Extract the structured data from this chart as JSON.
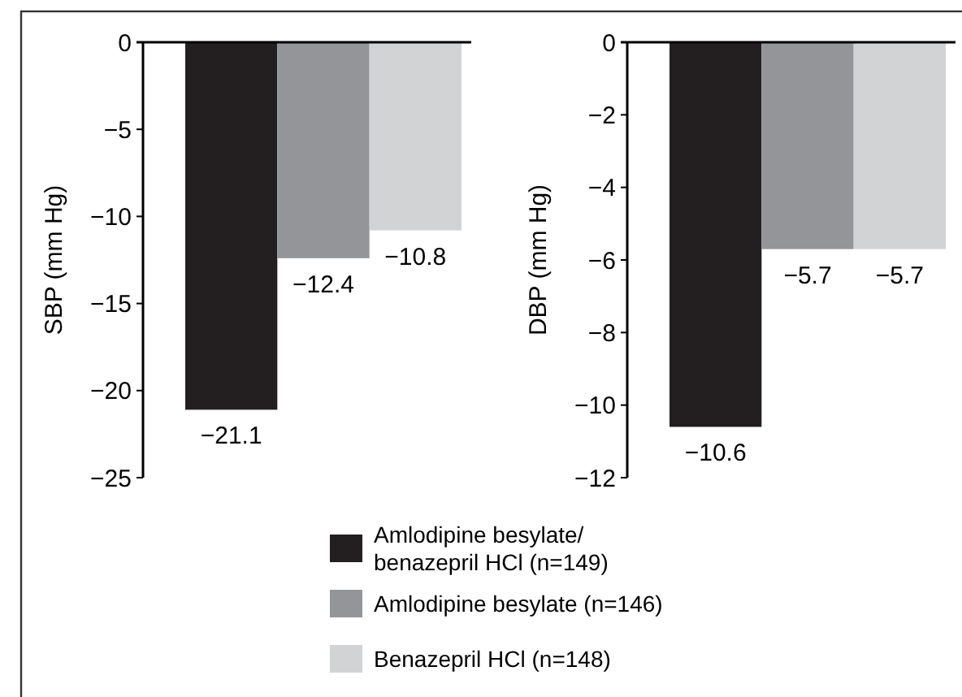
{
  "chart_data": [
    {
      "type": "bar",
      "ylabel": "SBP (mm Hg)",
      "categories": [
        null
      ],
      "ylim": [
        -25,
        0
      ],
      "yticks": [
        0,
        -5,
        -10,
        -15,
        -20,
        -25
      ],
      "data_labels": true,
      "legend": "bottom",
      "series": [
        {
          "name": "Amlodipine besylate/ benazepril HCl (n=149)",
          "color": "#231f20",
          "values": [
            -21.1
          ]
        },
        {
          "name": "Amlodipine besylate (n=146)",
          "color": "#939598",
          "values": [
            -12.4
          ]
        },
        {
          "name": "Benazepril HCl (n=148)",
          "color": "#d1d3d4",
          "values": [
            -10.8
          ]
        }
      ]
    },
    {
      "type": "bar",
      "ylabel": "DBP (mm Hg)",
      "categories": [
        null
      ],
      "ylim": [
        -12,
        0
      ],
      "yticks": [
        0,
        -2,
        -4,
        -6,
        -8,
        -10,
        -12
      ],
      "data_labels": true,
      "series": [
        {
          "color": "#231f20",
          "values": [
            -10.6
          ]
        },
        {
          "color": "#939598",
          "values": [
            -5.7
          ]
        },
        {
          "color": "#d1d3d4",
          "values": [
            -5.7
          ]
        }
      ]
    }
  ]
}
